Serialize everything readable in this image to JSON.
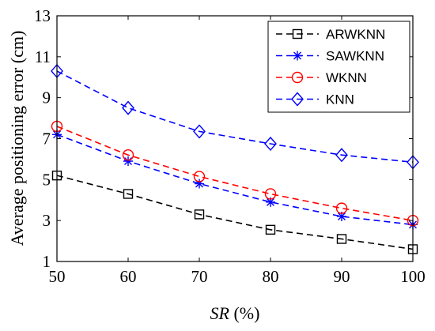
{
  "chart_data": {
    "type": "line",
    "xlabel_italic": "SR",
    "xlabel_unit": " (%)",
    "ylabel": "Average  positioning  error  (cm)",
    "xlim": [
      50,
      100
    ],
    "ylim": [
      1,
      13
    ],
    "xticks": [
      50,
      60,
      70,
      80,
      90,
      100
    ],
    "yticks": [
      1,
      3,
      5,
      7,
      9,
      11,
      13
    ],
    "grid": false,
    "legend_position": "top-right",
    "x": [
      50,
      60,
      70,
      80,
      90,
      100
    ],
    "series": [
      {
        "name": "ARWKNN",
        "values": [
          5.2,
          4.3,
          3.3,
          2.55,
          2.1,
          1.6
        ],
        "color": "#000000",
        "marker": "square"
      },
      {
        "name": "SAWKNN",
        "values": [
          7.2,
          5.9,
          4.8,
          3.9,
          3.2,
          2.8
        ],
        "color": "#0000ff",
        "marker": "asterisk"
      },
      {
        "name": "WKNN",
        "values": [
          7.6,
          6.2,
          5.15,
          4.3,
          3.6,
          3.0
        ],
        "color": "#ff0000",
        "marker": "circle"
      },
      {
        "name": "KNN",
        "values": [
          10.3,
          8.5,
          7.35,
          6.75,
          6.2,
          5.85
        ],
        "color": "#0000ff",
        "marker": "diamond"
      }
    ]
  }
}
